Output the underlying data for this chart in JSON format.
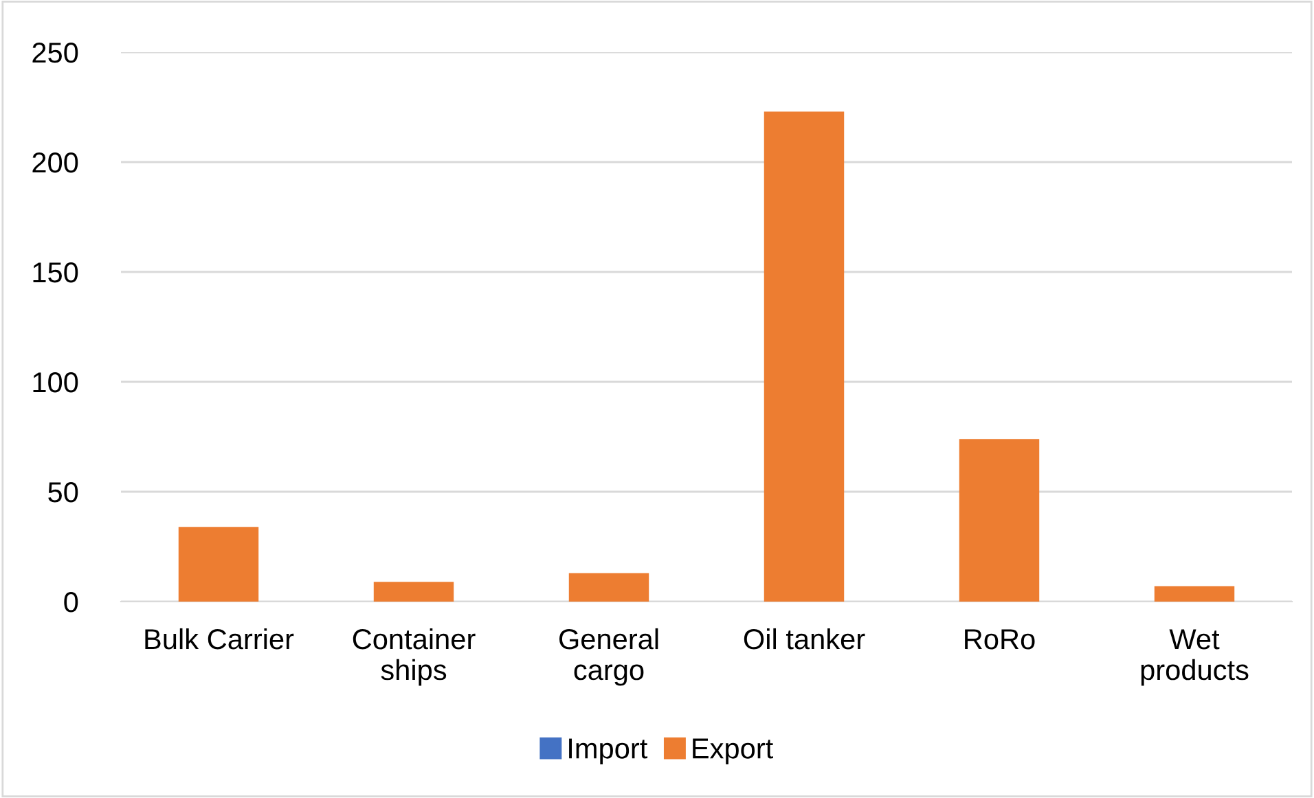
{
  "chart_data": {
    "type": "bar",
    "categories": [
      "Bulk Carrier",
      "Container\nships",
      "General\ncargo",
      "Oil tanker",
      "RoRo",
      "Wet\nproducts"
    ],
    "series": [
      {
        "name": "Import",
        "color": "#4472c4",
        "values": [
          0,
          0,
          0,
          0,
          0,
          0
        ]
      },
      {
        "name": "Export",
        "color": "#ed7d31",
        "values": [
          34,
          9,
          13,
          223,
          74,
          7
        ]
      }
    ],
    "ylim": [
      0,
      250
    ],
    "yticks": [
      0,
      50,
      100,
      150,
      200,
      250
    ],
    "grid": "y",
    "legend": "bottom"
  }
}
